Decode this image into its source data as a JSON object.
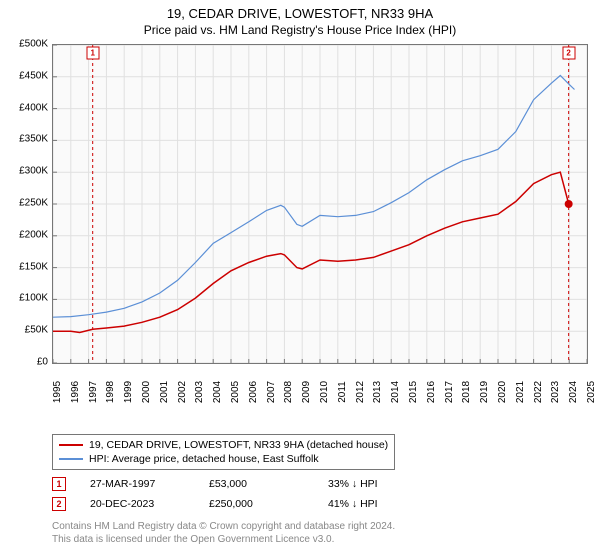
{
  "title_line1": "19, CEDAR DRIVE, LOWESTOFT, NR33 9HA",
  "title_line2": "Price paid vs. HM Land Registry's House Price Index (HPI)",
  "chart": {
    "type": "line",
    "background_color": "#fafafa",
    "border_color": "#767676",
    "grid_color": "#e0e0e0",
    "y_axis": {
      "min": 0,
      "max": 500000,
      "step": 50000,
      "labels": [
        "£0",
        "£50K",
        "£100K",
        "£150K",
        "£200K",
        "£250K",
        "£300K",
        "£350K",
        "£400K",
        "£450K",
        "£500K"
      ]
    },
    "x_axis": {
      "min": 1995,
      "max": 2025,
      "labels": [
        "1995",
        "1996",
        "1997",
        "1998",
        "1999",
        "2000",
        "2001",
        "2002",
        "2003",
        "2004",
        "2005",
        "2006",
        "2007",
        "2008",
        "2009",
        "2010",
        "2011",
        "2012",
        "2013",
        "2014",
        "2015",
        "2016",
        "2017",
        "2018",
        "2019",
        "2020",
        "2021",
        "2022",
        "2023",
        "2024",
        "2025"
      ]
    },
    "series": [
      {
        "id": "price_paid",
        "label": "19, CEDAR DRIVE, LOWESTOFT, NR33 9HA (detached house)",
        "color": "#cc0000",
        "line_width": 1.5,
        "points": [
          [
            1995.0,
            50000
          ],
          [
            1996.0,
            50000
          ],
          [
            1996.5,
            48000
          ],
          [
            1997.23,
            53000
          ],
          [
            1998.0,
            55000
          ],
          [
            1999.0,
            58000
          ],
          [
            2000.0,
            64000
          ],
          [
            2001.0,
            72000
          ],
          [
            2002.0,
            84000
          ],
          [
            2003.0,
            102000
          ],
          [
            2004.0,
            125000
          ],
          [
            2005.0,
            145000
          ],
          [
            2006.0,
            158000
          ],
          [
            2007.0,
            168000
          ],
          [
            2007.8,
            172000
          ],
          [
            2008.0,
            170000
          ],
          [
            2008.7,
            150000
          ],
          [
            2009.0,
            148000
          ],
          [
            2010.0,
            162000
          ],
          [
            2011.0,
            160000
          ],
          [
            2012.0,
            162000
          ],
          [
            2013.0,
            166000
          ],
          [
            2014.0,
            176000
          ],
          [
            2015.0,
            186000
          ],
          [
            2016.0,
            200000
          ],
          [
            2017.0,
            212000
          ],
          [
            2018.0,
            222000
          ],
          [
            2019.0,
            228000
          ],
          [
            2020.0,
            234000
          ],
          [
            2021.0,
            254000
          ],
          [
            2022.0,
            282000
          ],
          [
            2023.0,
            296000
          ],
          [
            2023.5,
            300000
          ],
          [
            2023.97,
            250000
          ]
        ],
        "dot_at": [
          2023.97,
          250000
        ],
        "dot_radius": 4
      },
      {
        "id": "hpi",
        "label": "HPI: Average price, detached house, East Suffolk",
        "color": "#5b8fd6",
        "line_width": 1.2,
        "points": [
          [
            1995.0,
            72000
          ],
          [
            1996.0,
            73000
          ],
          [
            1997.0,
            76000
          ],
          [
            1998.0,
            80000
          ],
          [
            1999.0,
            86000
          ],
          [
            2000.0,
            96000
          ],
          [
            2001.0,
            110000
          ],
          [
            2002.0,
            130000
          ],
          [
            2003.0,
            158000
          ],
          [
            2004.0,
            188000
          ],
          [
            2005.0,
            205000
          ],
          [
            2006.0,
            222000
          ],
          [
            2007.0,
            240000
          ],
          [
            2007.8,
            248000
          ],
          [
            2008.0,
            245000
          ],
          [
            2008.7,
            218000
          ],
          [
            2009.0,
            215000
          ],
          [
            2010.0,
            232000
          ],
          [
            2011.0,
            230000
          ],
          [
            2012.0,
            232000
          ],
          [
            2013.0,
            238000
          ],
          [
            2014.0,
            252000
          ],
          [
            2015.0,
            268000
          ],
          [
            2016.0,
            288000
          ],
          [
            2017.0,
            304000
          ],
          [
            2018.0,
            318000
          ],
          [
            2019.0,
            326000
          ],
          [
            2020.0,
            336000
          ],
          [
            2021.0,
            364000
          ],
          [
            2022.0,
            414000
          ],
          [
            2023.0,
            440000
          ],
          [
            2023.5,
            452000
          ],
          [
            2024.0,
            438000
          ],
          [
            2024.3,
            430000
          ]
        ]
      }
    ],
    "markers_on_chart": [
      {
        "num": "1",
        "color": "#cc0000",
        "x": 1997.23,
        "y_top": 1,
        "vline_dash": true
      },
      {
        "num": "2",
        "color": "#cc0000",
        "x": 2023.97,
        "y_top": 1,
        "vline_dash": true
      }
    ]
  },
  "legend": {
    "items": [
      {
        "color": "#cc0000",
        "label": "19, CEDAR DRIVE, LOWESTOFT, NR33 9HA (detached house)"
      },
      {
        "color": "#5b8fd6",
        "label": "HPI: Average price, detached house, East Suffolk"
      }
    ]
  },
  "marker_table": {
    "rows": [
      {
        "num": "1",
        "color": "#cc0000",
        "date": "27-MAR-1997",
        "price": "£53,000",
        "delta": "33% ↓ HPI"
      },
      {
        "num": "2",
        "color": "#cc0000",
        "date": "20-DEC-2023",
        "price": "£250,000",
        "delta": "41% ↓ HPI"
      }
    ]
  },
  "footer": {
    "line1": "Contains HM Land Registry data © Crown copyright and database right 2024.",
    "line2": "This data is licensed under the Open Government Licence v3.0."
  }
}
